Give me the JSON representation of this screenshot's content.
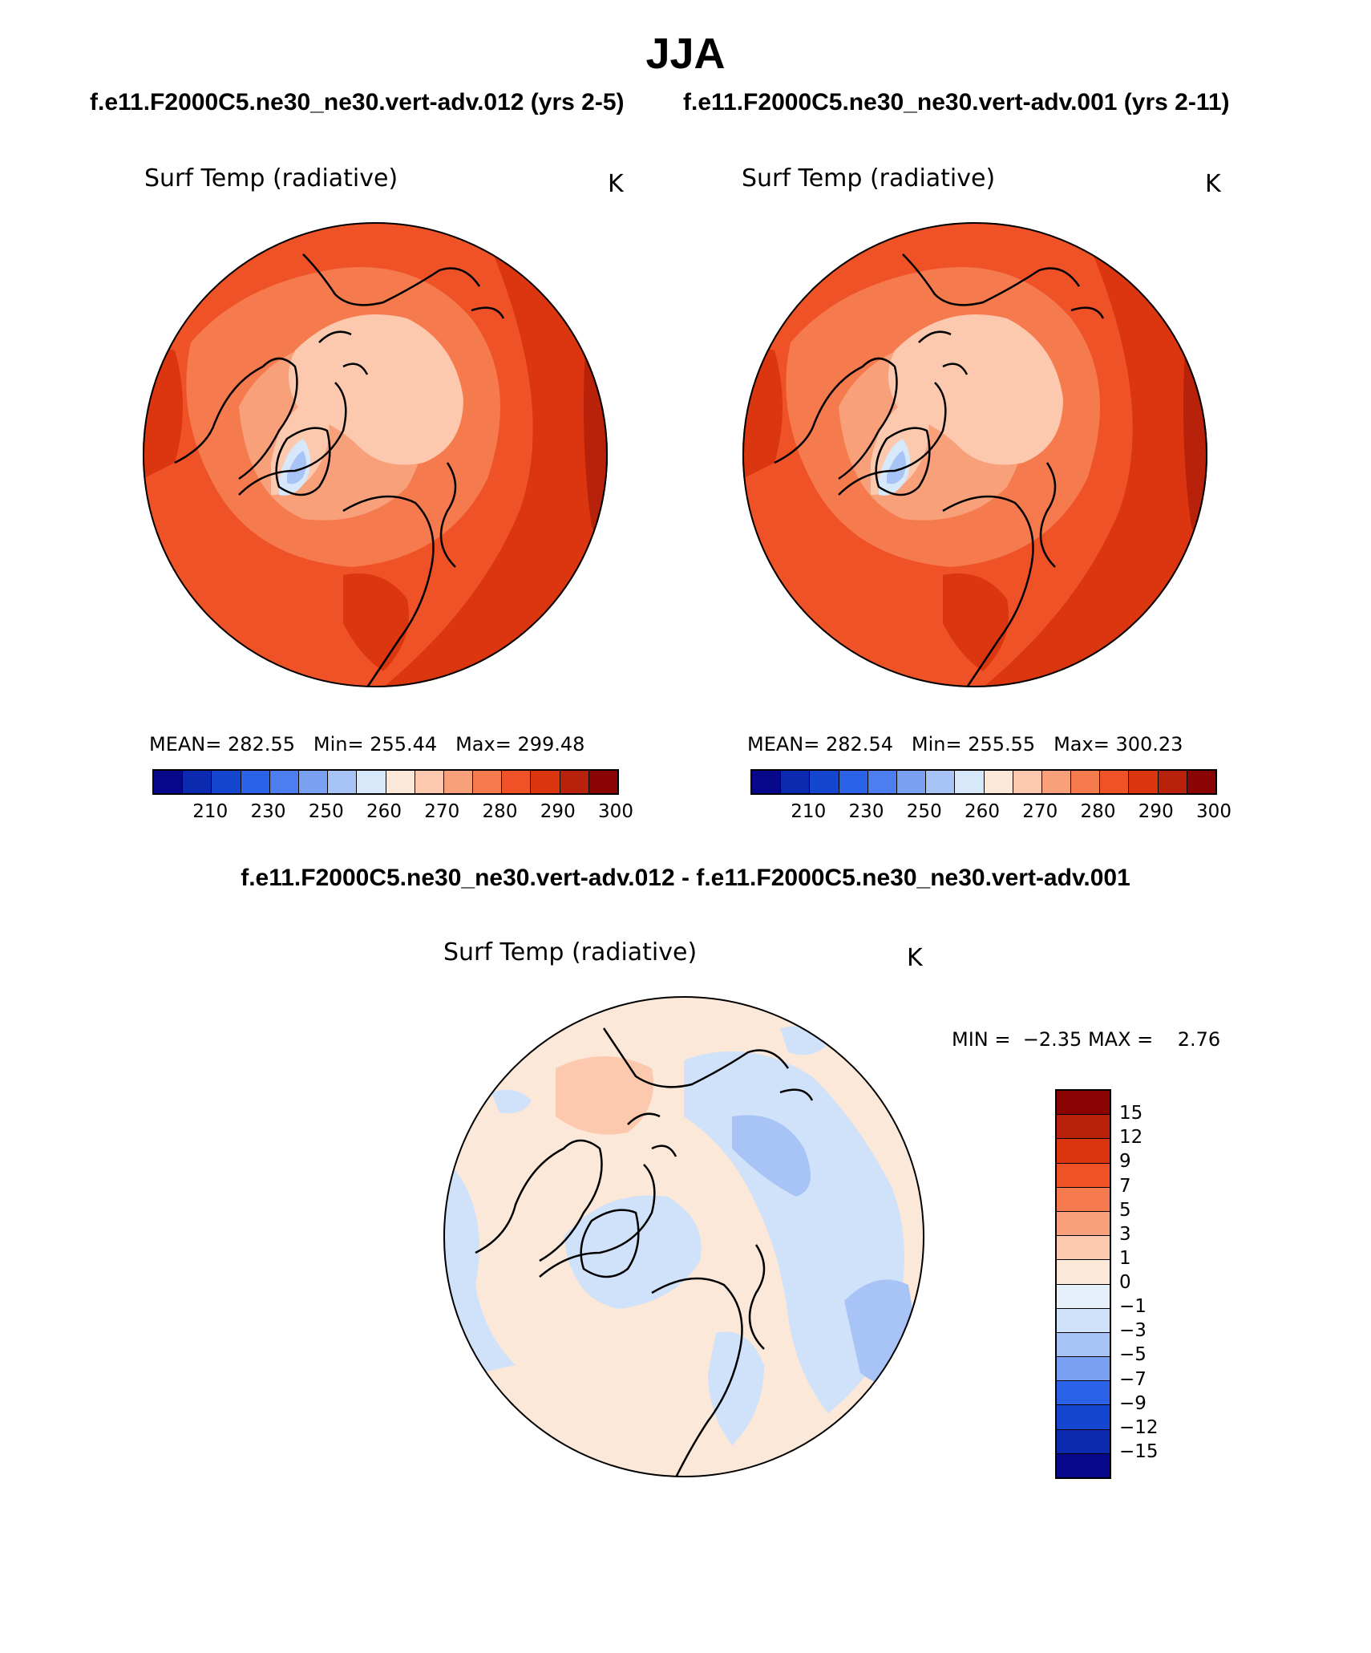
{
  "title": "JJA",
  "case_titles": [
    "f.e11.F2000C5.ne30_ne30.vert-adv.012 (yrs 2-5)",
    "f.e11.F2000C5.ne30_ne30.vert-adv.001 (yrs 2-11)"
  ],
  "diff_title": "f.e11.F2000C5.ne30_ne30.vert-adv.012 - f.e11.F2000C5.ne30_ne30.vert-adv.001",
  "panels": [
    {
      "variable": "Surf Temp (radiative)",
      "units": "K",
      "mean_label": "MEAN=",
      "mean": "282.55",
      "min_label": "Min=",
      "min": "255.44",
      "max_label": "Max=",
      "max": "299.48"
    },
    {
      "variable": "Surf Temp (radiative)",
      "units": "K",
      "mean_label": "MEAN=",
      "mean": "282.54",
      "min_label": "Min=",
      "min": "255.55",
      "max_label": "Max=",
      "max": "300.23"
    }
  ],
  "diff_panel": {
    "variable": "Surf Temp (radiative)",
    "units": "K",
    "min_label": "MIN =",
    "min": "−2.35",
    "max_label": "MAX =",
    "max": "2.76"
  },
  "abs_colorbar": {
    "tick_labels": [
      "210",
      "230",
      "250",
      "260",
      "270",
      "280",
      "290",
      "300"
    ],
    "colors": [
      "#08088a",
      "#0c2ab0",
      "#1446d0",
      "#2a62e8",
      "#4c7ef0",
      "#7aa0f2",
      "#a8c4f6",
      "#d6e8fa",
      "#fbe8d8",
      "#fcc8ae",
      "#f8a07a",
      "#f57a4e",
      "#ee5226",
      "#dc3610",
      "#b8220a",
      "#8a0404"
    ]
  },
  "diff_colorbar": {
    "tick_labels": [
      "15",
      "12",
      "9",
      "7",
      "5",
      "3",
      "1",
      "0",
      "−1",
      "−3",
      "−5",
      "−7",
      "−9",
      "−12",
      "−15"
    ],
    "colors_top_to_bottom": [
      "#8a0404",
      "#b8220a",
      "#dc3610",
      "#ee5226",
      "#f57a4e",
      "#f8a07a",
      "#fcc8ae",
      "#fbe8d8",
      "#e6f0fb",
      "#d0e2fa",
      "#a8c4f6",
      "#7aa0f2",
      "#2a62e8",
      "#1446d0",
      "#0c2ab0",
      "#08088a"
    ]
  }
}
